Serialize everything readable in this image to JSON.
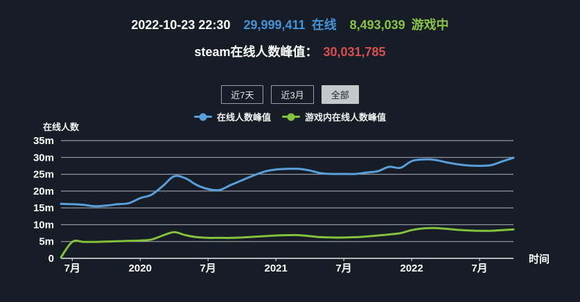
{
  "header": {
    "datetime": "2022-10-23 22:30",
    "online_value": "29,999,411",
    "online_label": "在线",
    "ingame_value": "8,493,039",
    "ingame_label": "游戏中",
    "peak_label": "steam在线人数峰值：",
    "peak_value": "30,031,785"
  },
  "controls": {
    "buttons": [
      {
        "label": "近7天",
        "active": false
      },
      {
        "label": "近3月",
        "active": false
      },
      {
        "label": "全部",
        "active": true
      }
    ]
  },
  "legend": [
    {
      "label": "在线人数峰值",
      "color": "#57a0dc"
    },
    {
      "label": "游戏内在线人数峰值",
      "color": "#84c23c"
    }
  ],
  "chart_data": {
    "type": "line",
    "title": "steam在线人数峰值",
    "xlabel": "时间",
    "ylabel": "在线人数",
    "x_unit": "month",
    "x_range": [
      "2019-06",
      "2022-10"
    ],
    "ylim": [
      0,
      35000000
    ],
    "grid": true,
    "legend_position": "top",
    "y_ticks": [
      {
        "value": 0,
        "label": "0"
      },
      {
        "value": 5,
        "label": "5m"
      },
      {
        "value": 10,
        "label": "10m"
      },
      {
        "value": 15,
        "label": "15m"
      },
      {
        "value": 20,
        "label": "20m"
      },
      {
        "value": 25,
        "label": "25m"
      },
      {
        "value": 30,
        "label": "30m"
      },
      {
        "value": 35,
        "label": "35m"
      }
    ],
    "x_ticks": [
      {
        "index": 1,
        "label": "7月"
      },
      {
        "index": 7,
        "label": "2020"
      },
      {
        "index": 13,
        "label": "7月"
      },
      {
        "index": 19,
        "label": "2021"
      },
      {
        "index": 25,
        "label": "7月"
      },
      {
        "index": 31,
        "label": "2022"
      },
      {
        "index": 37,
        "label": "7月"
      }
    ],
    "series": [
      {
        "name": "在线人数峰值",
        "color": "#57a0dc",
        "unit": "millions",
        "values": [
          16.2,
          16.1,
          15.9,
          15.5,
          15.7,
          16.1,
          16.4,
          17.9,
          18.9,
          21.5,
          24.4,
          23.8,
          21.8,
          20.6,
          20.3,
          21.8,
          23.2,
          24.6,
          25.8,
          26.4,
          26.6,
          26.6,
          26.1,
          25.3,
          25.1,
          25.1,
          25.1,
          25.5,
          25.9,
          27.2,
          26.9,
          28.9,
          29.4,
          29.3,
          28.6,
          28.0,
          27.6,
          27.5,
          27.7,
          28.8,
          29.9
        ]
      },
      {
        "name": "游戏内在线人数峰值",
        "color": "#84c23c",
        "unit": "millions",
        "values": [
          0.3,
          4.9,
          4.9,
          4.9,
          5.0,
          5.1,
          5.2,
          5.3,
          5.6,
          6.8,
          7.8,
          6.9,
          6.3,
          6.1,
          6.1,
          6.1,
          6.2,
          6.4,
          6.6,
          6.8,
          6.9,
          6.9,
          6.6,
          6.3,
          6.2,
          6.2,
          6.3,
          6.5,
          6.8,
          7.1,
          7.5,
          8.4,
          8.9,
          9.0,
          8.8,
          8.5,
          8.3,
          8.2,
          8.2,
          8.4,
          8.6
        ]
      }
    ]
  },
  "colors": {
    "background": "#161d27",
    "text": "#ffffff",
    "accent_blue": "#4492d8",
    "accent_green": "#8ac43e",
    "accent_red": "#dd4c4c",
    "grid": "#c9ced4",
    "axis": "#e8eaec"
  }
}
